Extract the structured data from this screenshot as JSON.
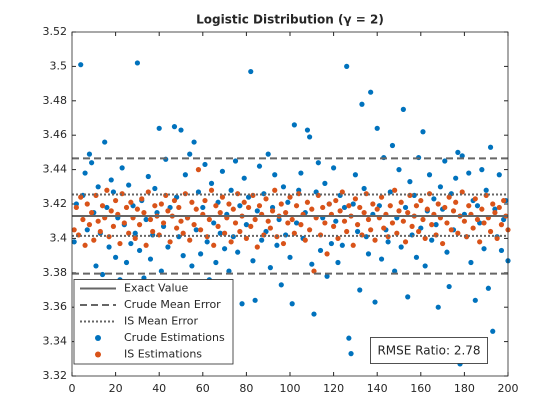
{
  "chart_data": {
    "type": "scatter",
    "title": "Logistic Distribution (γ = 2)",
    "xlim": [
      0,
      200
    ],
    "xticks": [
      0,
      20,
      40,
      60,
      80,
      100,
      120,
      140,
      160,
      180,
      200
    ],
    "ylim": [
      3.32,
      3.52
    ],
    "yticks": [
      3.32,
      3.34,
      3.36,
      3.38,
      3.4,
      3.42,
      3.44,
      3.46,
      3.48,
      3.5,
      3.52
    ],
    "legend": "lower left",
    "annotation": "RMSE Ratio: 2.78",
    "reference_lines": [
      {
        "name": "Exact Value",
        "values": [
          3.413
        ],
        "color": "#666666",
        "dash": "solid"
      },
      {
        "name": "Crude Mean Error",
        "values": [
          3.3795,
          3.4465
        ],
        "color": "#666666",
        "dash": "dashed"
      },
      {
        "name": "IS Mean Error",
        "values": [
          3.4015,
          3.4255
        ],
        "color": "#666666",
        "dash": "dotted"
      }
    ],
    "x": [
      1,
      2,
      3,
      4,
      5,
      6,
      7,
      8,
      9,
      10,
      11,
      12,
      13,
      14,
      15,
      16,
      17,
      18,
      19,
      20,
      21,
      22,
      23,
      24,
      25,
      26,
      27,
      28,
      29,
      30,
      31,
      32,
      33,
      34,
      35,
      36,
      37,
      38,
      39,
      40,
      41,
      42,
      43,
      44,
      45,
      46,
      47,
      48,
      49,
      50,
      51,
      52,
      53,
      54,
      55,
      56,
      57,
      58,
      59,
      60,
      61,
      62,
      63,
      64,
      65,
      66,
      67,
      68,
      69,
      70,
      71,
      72,
      73,
      74,
      75,
      76,
      77,
      78,
      79,
      80,
      81,
      82,
      83,
      84,
      85,
      86,
      87,
      88,
      89,
      90,
      91,
      92,
      93,
      94,
      95,
      96,
      97,
      98,
      99,
      100,
      101,
      102,
      103,
      104,
      105,
      106,
      107,
      108,
      109,
      110,
      111,
      112,
      113,
      114,
      115,
      116,
      117,
      118,
      119,
      120,
      121,
      122,
      123,
      124,
      125,
      126,
      127,
      128,
      129,
      130,
      131,
      132,
      133,
      134,
      135,
      136,
      137,
      138,
      139,
      140,
      141,
      142,
      143,
      144,
      145,
      146,
      147,
      148,
      149,
      150,
      151,
      152,
      153,
      154,
      155,
      156,
      157,
      158,
      159,
      160,
      161,
      162,
      163,
      164,
      165,
      166,
      167,
      168,
      169,
      170,
      171,
      172,
      173,
      174,
      175,
      176,
      177,
      178,
      179,
      180,
      181,
      182,
      183,
      184,
      185,
      186,
      187,
      188,
      189,
      190,
      191,
      192,
      193,
      194,
      195,
      196,
      197,
      198,
      199,
      200
    ],
    "series": [
      {
        "name": "Crude Estimations",
        "color": "#0072BD",
        "values": [
          3.398,
          3.42,
          3.371,
          3.501,
          3.425,
          3.438,
          3.405,
          3.449,
          3.444,
          3.415,
          3.384,
          3.43,
          3.403,
          3.379,
          3.456,
          3.418,
          3.395,
          3.434,
          3.427,
          3.389,
          3.412,
          3.376,
          3.441,
          3.408,
          3.386,
          3.431,
          3.397,
          3.419,
          3.403,
          3.502,
          3.393,
          3.422,
          3.377,
          3.411,
          3.436,
          3.388,
          3.402,
          3.429,
          3.415,
          3.464,
          3.381,
          3.407,
          3.446,
          3.395,
          3.418,
          3.372,
          3.465,
          3.424,
          3.401,
          3.463,
          3.39,
          3.437,
          3.412,
          3.449,
          3.384,
          3.456,
          3.405,
          3.427,
          3.391,
          3.418,
          3.443,
          3.398,
          3.376,
          3.432,
          3.409,
          3.386,
          3.421,
          3.403,
          3.439,
          3.394,
          3.414,
          3.381,
          3.428,
          3.401,
          3.445,
          3.392,
          3.419,
          3.362,
          3.435,
          3.408,
          3.424,
          3.497,
          3.387,
          3.364,
          3.416,
          3.442,
          3.399,
          3.426,
          3.404,
          3.449,
          3.383,
          3.418,
          3.437,
          3.396,
          3.411,
          3.373,
          3.43,
          3.402,
          3.421,
          3.389,
          3.362,
          3.466,
          3.409,
          3.428,
          3.438,
          3.4,
          3.415,
          3.463,
          3.459,
          3.385,
          3.356,
          3.427,
          3.444,
          3.393,
          3.412,
          3.432,
          3.378,
          3.42,
          3.397,
          3.441,
          3.41,
          3.386,
          3.425,
          3.396,
          3.418,
          3.5,
          3.342,
          3.333,
          3.42,
          3.437,
          3.404,
          3.37,
          3.478,
          3.429,
          3.401,
          3.391,
          3.485,
          3.414,
          3.363,
          3.464,
          3.419,
          3.388,
          3.447,
          3.405,
          3.398,
          3.427,
          3.454,
          3.381,
          3.412,
          3.44,
          3.395,
          3.475,
          3.418,
          3.366,
          3.433,
          3.402,
          3.425,
          3.389,
          3.447,
          3.406,
          3.462,
          3.384,
          3.416,
          3.437,
          3.399,
          3.423,
          3.408,
          3.36,
          3.43,
          3.417,
          3.445,
          3.392,
          3.372,
          3.426,
          3.405,
          3.435,
          3.45,
          3.327,
          3.448,
          3.414,
          3.401,
          3.438,
          3.386,
          3.422,
          3.364,
          3.419,
          3.409,
          3.44,
          3.394,
          3.428,
          3.371,
          3.453,
          3.346,
          3.417,
          3.401,
          3.437,
          3.393,
          3.411,
          3.422,
          3.387
        ]
      },
      {
        "name": "IS Estimations",
        "color": "#D95319",
        "values": [
          3.405,
          3.418,
          3.402,
          3.424,
          3.411,
          3.396,
          3.42,
          3.408,
          3.415,
          3.399,
          3.425,
          3.41,
          3.404,
          3.419,
          3.412,
          3.428,
          3.401,
          3.416,
          3.407,
          3.422,
          3.414,
          3.397,
          3.426,
          3.409,
          3.418,
          3.403,
          3.421,
          3.412,
          3.4,
          3.417,
          3.408,
          3.423,
          3.415,
          3.396,
          3.427,
          3.411,
          3.404,
          3.419,
          3.413,
          3.402,
          3.42,
          3.409,
          3.425,
          3.416,
          3.398,
          3.413,
          3.422,
          3.406,
          3.418,
          3.41,
          3.403,
          3.426,
          3.412,
          3.399,
          3.421,
          3.408,
          3.417,
          3.44,
          3.405,
          3.414,
          3.422,
          3.401,
          3.411,
          3.428,
          3.396,
          3.419,
          3.407,
          3.415,
          3.424,
          3.403,
          3.412,
          3.42,
          3.398,
          3.417,
          3.409,
          3.426,
          3.404,
          3.413,
          3.421,
          3.4,
          3.418,
          3.407,
          3.425,
          3.411,
          3.395,
          3.419,
          3.414,
          3.402,
          3.423,
          3.41,
          3.406,
          3.416,
          3.428,
          3.401,
          3.413,
          3.42,
          3.397,
          3.415,
          3.409,
          3.424,
          3.411,
          3.403,
          3.419,
          3.426,
          3.408,
          3.414,
          3.399,
          3.421,
          3.405,
          3.417,
          3.381,
          3.412,
          3.425,
          3.402,
          3.418,
          3.409,
          3.391,
          3.42,
          3.414,
          3.407,
          3.422,
          3.4,
          3.416,
          3.427,
          3.41,
          3.404,
          3.419,
          3.413,
          3.396,
          3.423,
          3.408,
          3.418,
          3.402,
          3.415,
          3.426,
          3.411,
          3.405,
          3.42,
          3.399,
          3.417,
          3.412,
          3.424,
          3.406,
          3.414,
          3.401,
          3.419,
          3.409,
          3.428,
          3.403,
          3.416,
          3.421,
          3.41,
          3.398,
          3.415,
          3.425,
          3.407,
          3.413,
          3.419,
          3.404,
          3.422,
          3.411,
          3.4,
          3.417,
          3.426,
          3.408,
          3.414,
          3.402,
          3.42,
          3.412,
          3.397,
          3.418,
          3.409,
          3.424,
          3.405,
          3.416,
          3.421,
          3.403,
          3.413,
          3.427,
          3.41,
          3.401,
          3.419,
          3.414,
          3.406,
          3.423,
          3.411,
          3.398,
          3.417,
          3.409,
          3.425,
          3.412,
          3.404,
          3.42,
          3.415,
          3.4,
          3.418,
          3.408,
          3.422,
          3.413,
          3.405
        ]
      }
    ]
  }
}
